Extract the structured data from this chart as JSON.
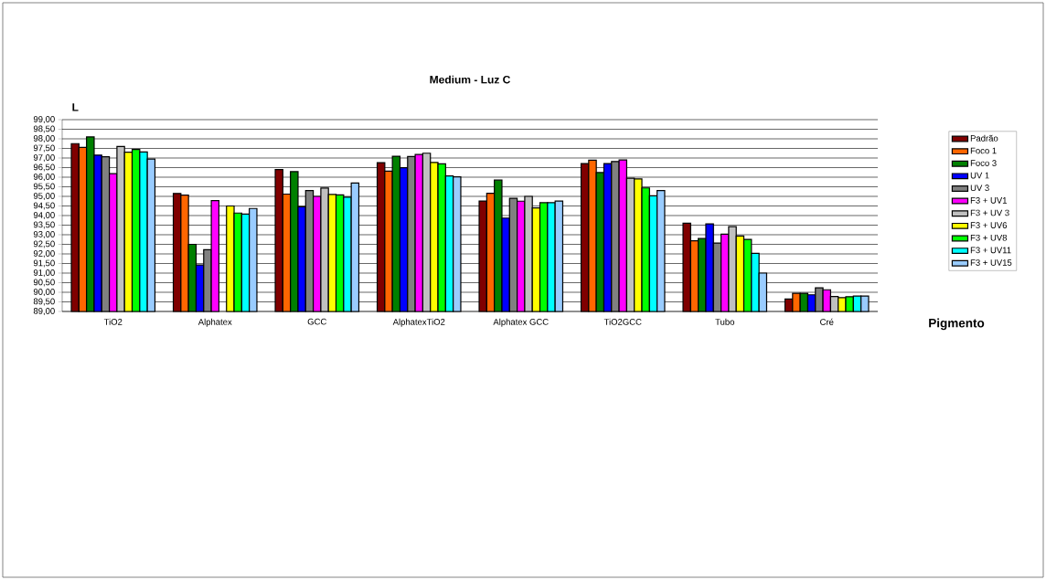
{
  "chart_data": {
    "type": "bar",
    "title": "Medium - Luz C",
    "xlabel": "Pigmento",
    "ylabel": "L",
    "categories": [
      "TiO2",
      "Alphatex",
      "GCC",
      "AlphatexTiO2",
      "Alphatex GCC",
      "TiO2GCC",
      "Tubo",
      "Cré"
    ],
    "ylim": [
      89,
      99
    ],
    "yticks": [
      {
        "value": 89,
        "label": "89,00"
      },
      {
        "value": 89.5,
        "label": "89,50"
      },
      {
        "value": 90,
        "label": "90,00"
      },
      {
        "value": 90.5,
        "label": "90,50"
      },
      {
        "value": 91,
        "label": "91,00"
      },
      {
        "value": 91.5,
        "label": "91,50"
      },
      {
        "value": 92,
        "label": "92,00"
      },
      {
        "value": 92.5,
        "label": "92,50"
      },
      {
        "value": 93,
        "label": "93,00"
      },
      {
        "value": 93.5,
        "label": "93,50"
      },
      {
        "value": 94,
        "label": "94,00"
      },
      {
        "value": 94.5,
        "label": "94,50"
      },
      {
        "value": 95,
        "label": "95,00"
      },
      {
        "value": 95.5,
        "label": "95,50"
      },
      {
        "value": 96,
        "label": "96,00"
      },
      {
        "value": 96.5,
        "label": "96,50"
      },
      {
        "value": 97,
        "label": "97,00"
      },
      {
        "value": 97.5,
        "label": "97,50"
      },
      {
        "value": 98,
        "label": "98,00"
      },
      {
        "value": 98.5,
        "label": "98,50"
      },
      {
        "value": 99,
        "label": "99,00"
      }
    ],
    "grid": "y",
    "legend": "right",
    "series": [
      {
        "name": "Padrão",
        "color": "#800000",
        "values": [
          97.75,
          95.15,
          96.4,
          96.76,
          94.76,
          96.71,
          93.6,
          89.65
        ]
      },
      {
        "name": "Foco 1",
        "color": "#ff6600",
        "values": [
          97.55,
          95.07,
          95.12,
          96.32,
          95.16,
          96.89,
          92.68,
          89.95
        ]
      },
      {
        "name": "Foco 3",
        "color": "#008000",
        "values": [
          98.1,
          92.5,
          96.29,
          97.09,
          95.85,
          96.24,
          92.8,
          89.95
        ]
      },
      {
        "name": "UV 1",
        "color": "#0000ff",
        "values": [
          97.15,
          91.42,
          94.46,
          96.49,
          93.87,
          96.71,
          93.57,
          89.87
        ]
      },
      {
        "name": "UV 3",
        "color": "#808080",
        "values": [
          97.07,
          92.22,
          95.3,
          97.08,
          94.9,
          96.82,
          92.57,
          90.23
        ]
      },
      {
        "name": "F3 + UV1",
        "color": "#ff00ff",
        "values": [
          96.18,
          94.78,
          95.0,
          97.18,
          94.75,
          96.9,
          93.03,
          90.13
        ]
      },
      {
        "name": "F3 + UV 3",
        "color": "#c0c0c0",
        "values": [
          97.6,
          null,
          95.43,
          97.25,
          95.0,
          95.95,
          93.42,
          89.78
        ]
      },
      {
        "name": "F3 + UV6",
        "color": "#ffff00",
        "values": [
          97.3,
          94.5,
          95.1,
          96.77,
          94.4,
          95.91,
          92.93,
          89.72
        ]
      },
      {
        "name": "F3 + UV8",
        "color": "#00ff00",
        "values": [
          97.45,
          94.13,
          95.08,
          96.7,
          94.67,
          95.44,
          92.76,
          89.77
        ]
      },
      {
        "name": "F3 + UV11",
        "color": "#00ffff",
        "values": [
          97.32,
          94.08,
          94.96,
          96.07,
          94.67,
          95.03,
          92.03,
          89.8
        ]
      },
      {
        "name": "F3 + UV15",
        "color": "#99ccff",
        "values": [
          96.95,
          94.37,
          95.7,
          96.02,
          94.76,
          95.3,
          91.0,
          89.8
        ]
      }
    ]
  }
}
